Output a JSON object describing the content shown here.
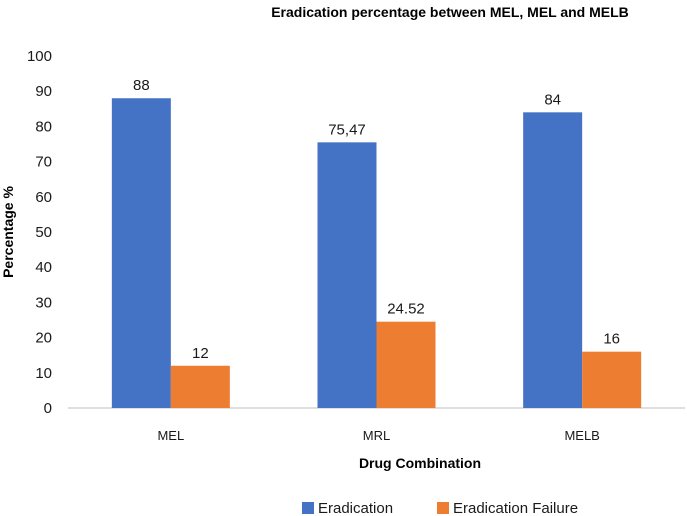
{
  "chart_data": {
    "type": "bar",
    "title": "Eradication percentage between MEL, MEL and MELB",
    "xlabel": "Drug Combination",
    "ylabel": "Percentage %",
    "categories": [
      "MEL",
      "MRL",
      "MELB"
    ],
    "series": [
      {
        "name": "Eradication",
        "color": "#4472C4",
        "values": [
          88,
          75.47,
          84
        ],
        "labels": [
          "88",
          "75,47",
          "84"
        ]
      },
      {
        "name": "Eradication Failure",
        "color": "#ED7D31",
        "values": [
          12,
          24.52,
          16
        ],
        "labels": [
          "12",
          "24.52",
          "16"
        ]
      }
    ],
    "ylim": [
      0,
      100
    ],
    "yticks": [
      "0",
      "10",
      "20",
      "30",
      "40",
      "50",
      "60",
      "70",
      "80",
      "90",
      "100"
    ],
    "grid": false,
    "legend_position": "bottom"
  }
}
